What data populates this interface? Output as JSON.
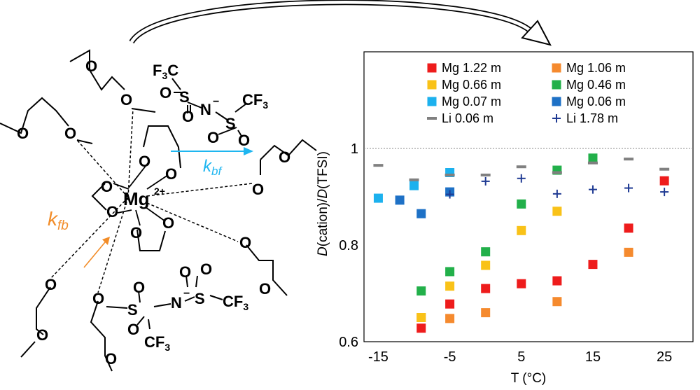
{
  "scheme": {
    "center_ion": "Mg",
    "center_charge": "2+",
    "oxygen": "O",
    "nitrogen": "N",
    "sulfur": "S",
    "cf3_main": "CF",
    "cf3_sub": "3",
    "f3c_main": "F",
    "f3c_sub": "3",
    "f3c_tail": "C",
    "n_charge": "−",
    "kbf_k": "k",
    "kbf_sub": "bf",
    "kfb_k": "k",
    "kfb_sub": "fb",
    "colors": {
      "kbf": "#1FB6F0",
      "kfb": "#F28C28"
    }
  },
  "chart_data": {
    "type": "scatter",
    "xlabel": "T (°C)",
    "ylabel_parts": [
      "D",
      "(cation)/",
      "D",
      "(TFSI)"
    ],
    "xlim": [
      -17,
      29
    ],
    "ylim": [
      0.6,
      1.2
    ],
    "xticks": [
      -15,
      -5,
      5,
      15,
      25
    ],
    "yticks": [
      0.6,
      0.8,
      1.0
    ],
    "ytick_labels": [
      "0.6",
      "0.8",
      "1"
    ],
    "reference_line": {
      "y": 1.0,
      "style": "dotted"
    },
    "series": [
      {
        "name": "Mg 1.22 m",
        "marker": "square",
        "color": "#EE1C1C",
        "points": [
          [
            -9,
            0.628
          ],
          [
            -5,
            0.678
          ],
          [
            0,
            0.71
          ],
          [
            5,
            0.72
          ],
          [
            10,
            0.726
          ],
          [
            15,
            0.76
          ],
          [
            20,
            0.835
          ],
          [
            25,
            0.933
          ]
        ]
      },
      {
        "name": "Mg 1.06 m",
        "marker": "square",
        "color": "#F58A2E",
        "points": [
          [
            -9,
            0.65
          ],
          [
            -5,
            0.648
          ],
          [
            0,
            0.66
          ],
          [
            10,
            0.683
          ],
          [
            20,
            0.785
          ]
        ]
      },
      {
        "name": "Mg 0.66 m",
        "marker": "square",
        "color": "#F9C218",
        "points": [
          [
            -9,
            0.65
          ],
          [
            -5,
            0.715
          ],
          [
            0,
            0.758
          ],
          [
            5,
            0.83
          ],
          [
            10,
            0.87
          ]
        ]
      },
      {
        "name": "Mg 0.46 m",
        "marker": "square",
        "color": "#22B04A",
        "points": [
          [
            -9,
            0.705
          ],
          [
            -5,
            0.745
          ],
          [
            0,
            0.786
          ],
          [
            5,
            0.885
          ],
          [
            10,
            0.955
          ],
          [
            15,
            0.98
          ]
        ]
      },
      {
        "name": "Mg 0.07 m",
        "marker": "square",
        "color": "#1CB1EE",
        "points": [
          [
            -15,
            0.897
          ],
          [
            -10,
            0.923
          ],
          [
            -5,
            0.95
          ]
        ]
      },
      {
        "name": "Mg 0.06 m",
        "marker": "square",
        "color": "#1E71C6",
        "points": [
          [
            -12,
            0.893
          ],
          [
            -9,
            0.865
          ],
          [
            -5,
            0.91
          ]
        ]
      },
      {
        "name": "Li 0.06 m",
        "marker": "dash",
        "color": "#808080",
        "points": [
          [
            -15,
            0.965
          ],
          [
            -10,
            0.935
          ],
          [
            -5,
            0.945
          ],
          [
            0,
            0.945
          ],
          [
            5,
            0.962
          ],
          [
            10,
            0.95
          ],
          [
            15,
            0.97
          ],
          [
            20,
            0.978
          ],
          [
            25,
            0.957
          ]
        ]
      },
      {
        "name": "Li 1.78 m",
        "marker": "plus",
        "color": "#1F3A93",
        "points": [
          [
            -5,
            0.905
          ],
          [
            0,
            0.932
          ],
          [
            5,
            0.938
          ],
          [
            10,
            0.906
          ],
          [
            15,
            0.915
          ],
          [
            20,
            0.918
          ],
          [
            25,
            0.91
          ]
        ]
      }
    ]
  }
}
